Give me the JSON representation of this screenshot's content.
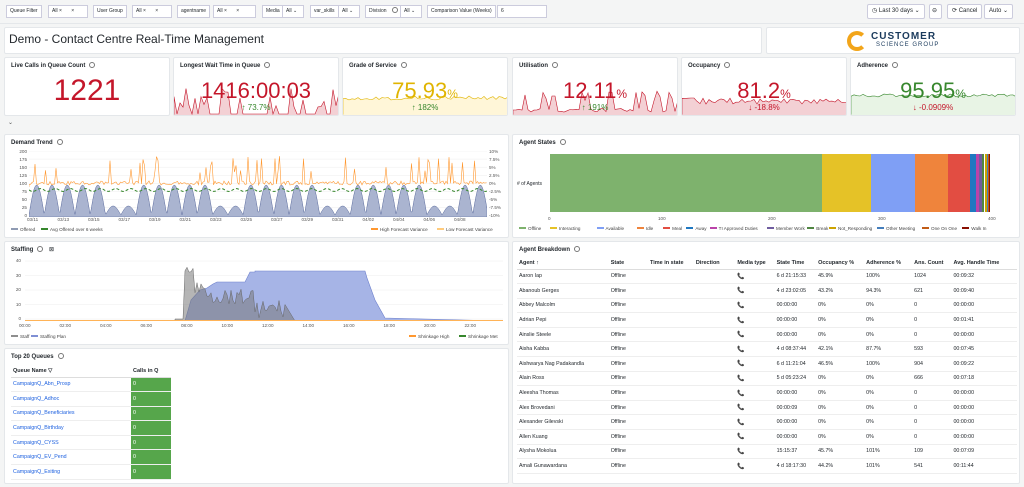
{
  "filters": [
    {
      "label": "Queue Filter",
      "value": "All"
    },
    {
      "label": "User Group",
      "value": "All"
    },
    {
      "label": "agentname",
      "value": "All"
    },
    {
      "label": "Media",
      "value": "All"
    },
    {
      "label": "var_skills",
      "value": "All"
    },
    {
      "label": "Division",
      "value": "All"
    },
    {
      "label": "Comparison Value (Weeks)",
      "value": "6"
    }
  ],
  "timepicker": {
    "range": "Last 30 days",
    "cancel": "Cancel",
    "refresh": "Auto"
  },
  "dashboard": {
    "title": "Demo - Contact Centre Real-Time Management",
    "logo_top": "CUSTOMER",
    "logo_bottom": "SCIENCE GROUP"
  },
  "stats": [
    {
      "title": "Live Calls in Queue Count",
      "value": "1221",
      "unit": "",
      "delta": "",
      "color": "#c4162a"
    },
    {
      "title": "Longest Wait Time in Queue",
      "value": "1416:00:03",
      "unit": "",
      "delta": "73.7%",
      "delta_dir": "up",
      "color": "#c4162a"
    },
    {
      "title": "Grade of Service",
      "value": "75.93",
      "unit": "%",
      "delta": "182%",
      "delta_dir": "up",
      "color": "#e0b400"
    },
    {
      "title": "Utilisation",
      "value": "12.11",
      "unit": "%",
      "delta": "191%",
      "delta_dir": "up",
      "color": "#c4162a"
    },
    {
      "title": "Occupancy",
      "value": "81.2",
      "unit": "%",
      "delta": "-18.8%",
      "delta_dir": "down",
      "color": "#c4162a"
    },
    {
      "title": "Adherence",
      "value": "95.95",
      "unit": "%",
      "delta": "-0.0909%",
      "delta_dir": "down",
      "color": "#37872d"
    }
  ],
  "demand": {
    "title": "Demand Trend",
    "yticks_left": [
      "200",
      "175",
      "150",
      "125",
      "100",
      "75",
      "50",
      "25",
      "0"
    ],
    "yticks_right": [
      "10%",
      "7.5%",
      "5%",
      "2.5%",
      "0%",
      "-2.5%",
      "-5%",
      "-7.5%",
      "-10%"
    ],
    "xticks": [
      "03/11",
      "03/13",
      "03/15",
      "03/17",
      "03/19",
      "03/21",
      "03/23",
      "03/25",
      "03/27",
      "03/29",
      "03/31",
      "04/02",
      "04/04",
      "04/06",
      "04/08"
    ],
    "legend": [
      "Offered",
      "Avg Offered over 6 weeks",
      "High Forecast Variance",
      "Low Forecast Variance"
    ]
  },
  "agent_states": {
    "title": "Agent States",
    "ylabel": "# of Agents",
    "xticks": [
      "0",
      "100",
      "200",
      "300",
      "400"
    ],
    "segments": [
      {
        "name": "Offline",
        "value": 247,
        "color": "#7eb26d"
      },
      {
        "name": "Interacting",
        "value": 45,
        "color": "#e5c227"
      },
      {
        "name": "Available",
        "value": 40,
        "color": "#7f9ff5"
      },
      {
        "name": "Idle",
        "value": 30,
        "color": "#ef843c"
      },
      {
        "name": "Meal",
        "value": 20,
        "color": "#e24d42"
      },
      {
        "name": "Away",
        "value": 5,
        "color": "#1f78c1"
      },
      {
        "name": "TI Approved Duties",
        "value": 3,
        "color": "#ba43a9"
      },
      {
        "name": "Member Work",
        "value": 3,
        "color": "#705da0"
      },
      {
        "name": "Break",
        "value": 2,
        "color": "#508642"
      },
      {
        "name": "Not_Responding",
        "value": 2,
        "color": "#cca300"
      },
      {
        "name": "Other Meeting",
        "value": 1,
        "color": "#447ebc"
      },
      {
        "name": "One On One",
        "value": 1,
        "color": "#c15c17"
      },
      {
        "name": "Walk In",
        "value": 1,
        "color": "#890f02"
      }
    ],
    "xmax": 400
  },
  "staffing": {
    "title": "Staffing",
    "yticks": [
      "40",
      "30",
      "20",
      "10",
      "0"
    ],
    "xticks": [
      "00:00",
      "02:00",
      "04:00",
      "06:00",
      "08:00",
      "10:00",
      "12:00",
      "14:00",
      "16:00",
      "18:00",
      "20:00",
      "22:00"
    ],
    "legend_left": [
      "Staff",
      "Staffing Plan"
    ],
    "legend_right": [
      "Shrinkage High",
      "Shrinkage Met"
    ]
  },
  "queues": {
    "title": "Top 20 Queues",
    "col_name": "Queue Name",
    "col_calls": "Calls in Q",
    "rows": [
      {
        "name": "CampaignQ_Abn_Prosp",
        "calls": "0"
      },
      {
        "name": "CampaignQ_Adhoc",
        "calls": "0"
      },
      {
        "name": "CampaignQ_Beneficiaries",
        "calls": "0"
      },
      {
        "name": "CampaignQ_Birthday",
        "calls": "0"
      },
      {
        "name": "CampaignQ_CYSS",
        "calls": "0"
      },
      {
        "name": "CampaignQ_EV_Pend",
        "calls": "0"
      },
      {
        "name": "CampaignQ_Exiting",
        "calls": "0"
      }
    ]
  },
  "breakdown": {
    "title": "Agent Breakdown",
    "columns": [
      "Agent",
      "State",
      "Time in state",
      "Direction",
      "Media type",
      "State Time",
      "Occupancy %",
      "Adherence %",
      "Ans. Count",
      "Avg. Handle Time"
    ],
    "rows": [
      [
        "Aaron Iap",
        "Offline",
        "",
        "",
        "",
        "6 d 21:15:33",
        "45.9%",
        "100%",
        "1024",
        "00:09:32"
      ],
      [
        "Abanoub Gerges",
        "Offline",
        "",
        "",
        "",
        "4 d 23:02:05",
        "43.2%",
        "94.3%",
        "621",
        "00:09:40"
      ],
      [
        "Abbey Malcolm",
        "Offline",
        "",
        "",
        "",
        "00:00:00",
        "0%",
        "0%",
        "0",
        "00:00:00"
      ],
      [
        "Adrian Pepi",
        "Offline",
        "",
        "",
        "",
        "00:00:00",
        "0%",
        "0%",
        "0",
        "00:01:41"
      ],
      [
        "Ainslie Steele",
        "Offline",
        "",
        "",
        "",
        "00:00:00",
        "0%",
        "0%",
        "0",
        "00:00:00"
      ],
      [
        "Aisha Kabba",
        "Offline",
        "",
        "",
        "",
        "4 d 08:37:44",
        "42.1%",
        "87.7%",
        "593",
        "00:07:45"
      ],
      [
        "Aishwarya Nag Padakandla",
        "Offline",
        "",
        "",
        "",
        "6 d 11:21:04",
        "46.5%",
        "100%",
        "904",
        "00:09:22"
      ],
      [
        "Alain Ross",
        "Offline",
        "",
        "",
        "",
        "5 d 05:23:24",
        "0%",
        "0%",
        "666",
        "00:07:18"
      ],
      [
        "Aleesha Thomas",
        "Offline",
        "",
        "",
        "",
        "00:00:00",
        "0%",
        "0%",
        "0",
        "00:00:00"
      ],
      [
        "Alex Brovedani",
        "Offline",
        "",
        "",
        "",
        "00:00:09",
        "0%",
        "0%",
        "0",
        "00:00:00"
      ],
      [
        "Alexander Gilevski",
        "Offline",
        "",
        "",
        "",
        "00:00:00",
        "0%",
        "0%",
        "0",
        "00:00:00"
      ],
      [
        "Allen Kuang",
        "Offline",
        "",
        "",
        "",
        "00:00:00",
        "0%",
        "0%",
        "0",
        "00:00:00"
      ],
      [
        "Alysha Mokolua",
        "Offline",
        "",
        "",
        "",
        "15:15:37",
        "45.7%",
        "101%",
        "109",
        "00:07:09"
      ],
      [
        "Amali Gunawardana",
        "Offline",
        "",
        "",
        "",
        "4 d 18:17:30",
        "44.2%",
        "101%",
        "541",
        "00:11:44"
      ]
    ]
  }
}
